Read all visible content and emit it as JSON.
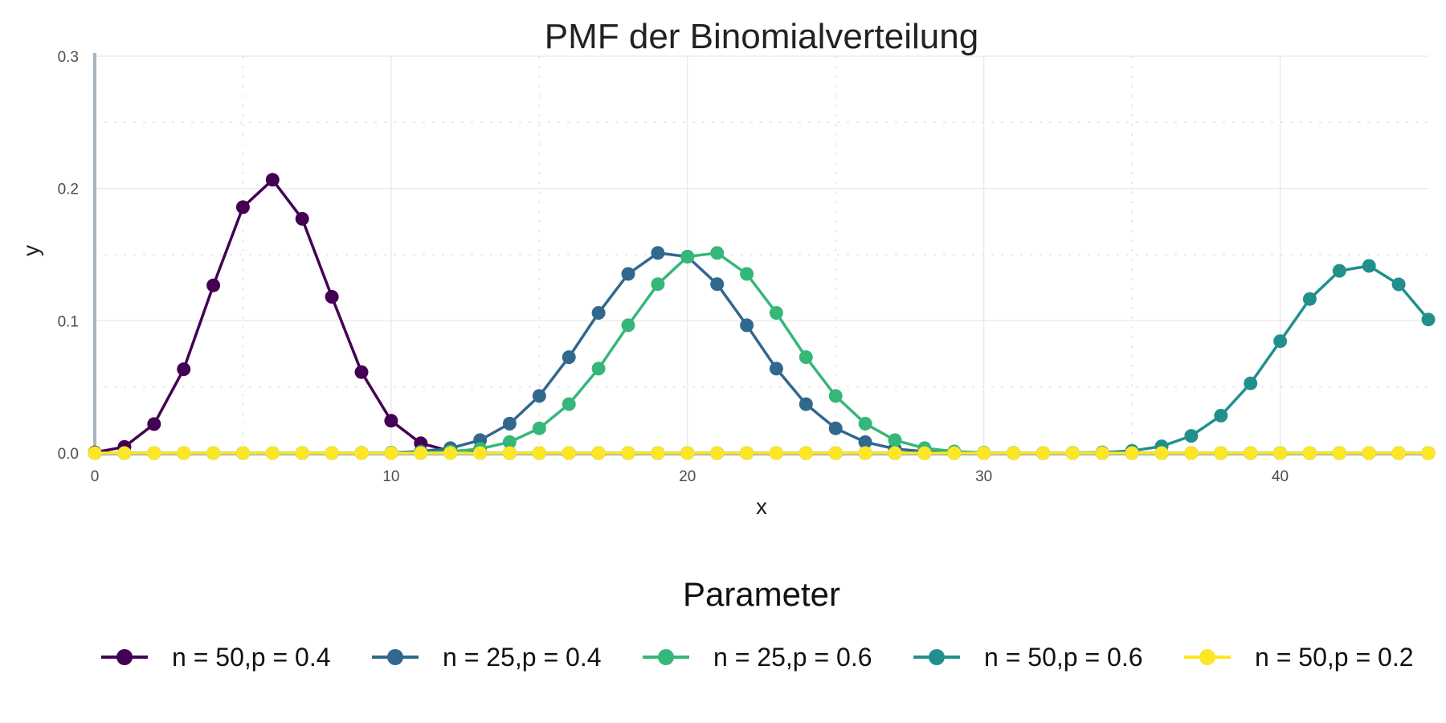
{
  "chart_data": {
    "type": "line",
    "title": "PMF der Binomialverteilung",
    "xlabel": "x",
    "ylabel": "y",
    "xlim": [
      0,
      45
    ],
    "ylim": [
      0,
      0.3
    ],
    "x_ticks": [
      0,
      10,
      20,
      30,
      40
    ],
    "x_tick_labels": [
      "0",
      "10",
      "20",
      "30",
      "40"
    ],
    "y_ticks": [
      0,
      0.1,
      0.2,
      0.3
    ],
    "y_tick_labels": [
      "0.0",
      "0.1",
      "0.2",
      "0.3"
    ],
    "grid": true,
    "legend_title": "Parameter",
    "legend_position": "bottom",
    "series": [
      {
        "name": "n = 50,p = 0.4",
        "color": "#440154",
        "x": [
          0,
          1,
          2,
          3,
          4,
          5,
          6,
          7,
          8,
          9,
          10,
          11,
          12,
          13,
          14,
          15,
          16,
          17,
          18,
          19,
          20,
          21,
          22,
          23,
          24,
          25,
          26,
          27,
          28,
          29,
          30,
          31,
          32,
          33,
          34,
          35,
          36,
          37,
          38,
          39,
          40,
          41,
          42,
          43,
          44,
          45
        ],
        "y": [
          0.0005,
          0.0047,
          0.0219,
          0.0634,
          0.1268,
          0.1859,
          0.2066,
          0.1771,
          0.1181,
          0.0612,
          0.0245,
          0.0074,
          0.0016,
          0.0002,
          0,
          0,
          0,
          0,
          0,
          0,
          0,
          0,
          0,
          0,
          0,
          0,
          0,
          0,
          0,
          0,
          0,
          0,
          0,
          0,
          0,
          0,
          0,
          0,
          0,
          0,
          0,
          0,
          0,
          0,
          0,
          0
        ]
      },
      {
        "name": "n = 25,p = 0.4",
        "color": "#31688e",
        "x": [
          0,
          1,
          2,
          3,
          4,
          5,
          6,
          7,
          8,
          9,
          10,
          11,
          12,
          13,
          14,
          15,
          16,
          17,
          18,
          19,
          20,
          21,
          22,
          23,
          24,
          25,
          26,
          27,
          28,
          29,
          30,
          31,
          32,
          33,
          34,
          35,
          36,
          37,
          38,
          39,
          40,
          41,
          42,
          43,
          44,
          45
        ],
        "y": [
          0,
          0,
          0,
          0,
          0,
          0,
          0,
          0,
          0,
          0.0001,
          0.0003,
          0.0012,
          0.0037,
          0.0098,
          0.0222,
          0.0432,
          0.0725,
          0.106,
          0.1354,
          0.1513,
          0.1485,
          0.1277,
          0.0966,
          0.0638,
          0.037,
          0.0187,
          0.0083,
          0.0032,
          0.0011,
          0.0003,
          0.0001,
          0,
          0,
          0,
          0,
          0,
          0,
          0,
          0,
          0,
          0,
          0,
          0,
          0,
          0,
          0
        ]
      },
      {
        "name": "n = 25,p = 0.6",
        "color": "#35b779",
        "x": [
          0,
          1,
          2,
          3,
          4,
          5,
          6,
          7,
          8,
          9,
          10,
          11,
          12,
          13,
          14,
          15,
          16,
          17,
          18,
          19,
          20,
          21,
          22,
          23,
          24,
          25,
          26,
          27,
          28,
          29,
          30,
          31,
          32,
          33,
          34,
          35,
          36,
          37,
          38,
          39,
          40,
          41,
          42,
          43,
          44,
          45
        ],
        "y": [
          0,
          0,
          0,
          0,
          0,
          0,
          0,
          0,
          0,
          0,
          0.0001,
          0.0003,
          0.0011,
          0.0032,
          0.0083,
          0.0187,
          0.037,
          0.0638,
          0.0966,
          0.1277,
          0.1485,
          0.1513,
          0.1354,
          0.106,
          0.0725,
          0.0432,
          0.0222,
          0.0098,
          0.0037,
          0.0012,
          0.0003,
          0.0001,
          0,
          0,
          0,
          0,
          0,
          0,
          0,
          0,
          0,
          0,
          0,
          0,
          0,
          0
        ]
      },
      {
        "name": "n = 50,p = 0.6",
        "color": "#21908d",
        "x": [
          0,
          1,
          2,
          3,
          4,
          5,
          6,
          7,
          8,
          9,
          10,
          11,
          12,
          13,
          14,
          15,
          16,
          17,
          18,
          19,
          20,
          21,
          22,
          23,
          24,
          25,
          26,
          27,
          28,
          29,
          30,
          31,
          32,
          33,
          34,
          35,
          36,
          37,
          38,
          39,
          40,
          41,
          42,
          43,
          44,
          45
        ],
        "y": [
          0,
          0,
          0,
          0,
          0,
          0,
          0,
          0,
          0,
          0,
          0,
          0,
          0,
          0,
          0,
          0,
          0,
          0,
          0,
          0,
          0,
          0,
          0,
          0,
          0,
          0,
          0,
          0,
          0,
          0,
          0,
          0,
          0,
          0.0001,
          0.0005,
          0.0017,
          0.0051,
          0.013,
          0.0283,
          0.0527,
          0.0846,
          0.1165,
          0.1378,
          0.1415,
          0.1275,
          0.101
        ]
      },
      {
        "name": "n = 50,p = 0.2",
        "color": "#fde725",
        "x": [
          0,
          1,
          2,
          3,
          4,
          5,
          6,
          7,
          8,
          9,
          10,
          11,
          12,
          13,
          14,
          15,
          16,
          17,
          18,
          19,
          20,
          21,
          22,
          23,
          24,
          25,
          26,
          27,
          28,
          29,
          30,
          31,
          32,
          33,
          34,
          35,
          36,
          37,
          38,
          39,
          40,
          41,
          42,
          43,
          44,
          45
        ],
        "y": [
          0,
          0,
          0,
          0,
          0,
          0,
          0,
          0,
          0,
          0,
          0,
          0,
          0,
          0,
          0,
          0,
          0,
          0,
          0,
          0,
          0,
          0,
          0,
          0,
          0,
          0,
          0,
          0,
          0,
          0,
          0,
          0,
          0,
          0,
          0,
          0,
          0,
          0,
          0,
          0,
          0,
          0,
          0,
          0,
          0,
          0
        ]
      }
    ]
  }
}
